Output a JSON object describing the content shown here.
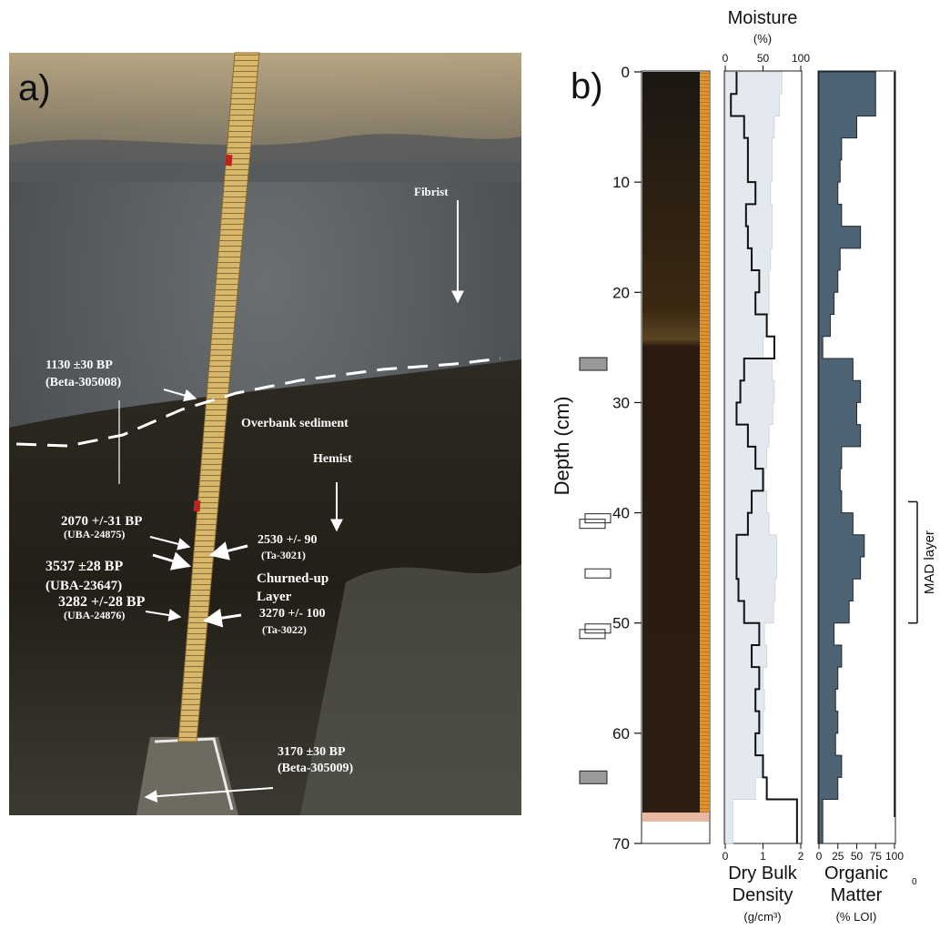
{
  "panel_a": {
    "label": "a)",
    "annotations": [
      {
        "id": "fibrist",
        "text": "Fibrist"
      },
      {
        "id": "d1130",
        "text": "1130 ±30 BP",
        "lab": "(Beta-305008)"
      },
      {
        "id": "overbank",
        "text": "Overbank sediment"
      },
      {
        "id": "hemist",
        "text": "Hemist"
      },
      {
        "id": "d2070",
        "text": "2070 +/-31 BP",
        "lab": "(UBA-24875)"
      },
      {
        "id": "d2530",
        "text": "2530 +/- 90",
        "lab": "(Ta-3021)"
      },
      {
        "id": "churned",
        "text": "Churned-up",
        "lab": "Layer"
      },
      {
        "id": "d3537",
        "text": "3537 ±28 BP",
        "lab": "(UBA-23647)"
      },
      {
        "id": "d3282",
        "text": "3282 +/-28 BP",
        "lab": "(UBA-24876)"
      },
      {
        "id": "d3270",
        "text": "3270 +/- 100",
        "lab": "(Ta-3022)"
      },
      {
        "id": "d3170",
        "text": "3170 ±30 BP",
        "lab": "(Beta-305009)"
      }
    ]
  },
  "panel_b": {
    "label": "b)",
    "depth_axis": {
      "label": "Depth (cm)",
      "ticks": [
        "0",
        "10",
        "20",
        "30",
        "40",
        "50",
        "60",
        "70"
      ]
    },
    "moisture_axis": {
      "title": "Moisture",
      "unit": "(%)",
      "ticks": [
        "0",
        "50",
        "100"
      ]
    },
    "density_axis": {
      "title1": "Dry Bulk",
      "title2": "Density",
      "unit": "(g/cm³)",
      "ticks": [
        "0",
        "1",
        "2"
      ]
    },
    "organic_axis": {
      "title1": "Organic",
      "title2": "Matter",
      "unit": "(% LOI)",
      "ticks": [
        "0",
        "25",
        "50",
        "75",
        "100"
      ]
    },
    "mad_label": "MAD layer",
    "stray_label": "0"
  },
  "chart_data": {
    "type": "step-profile",
    "depth_range": [
      0,
      70
    ],
    "moisture_range": [
      0,
      100
    ],
    "density_range": [
      0,
      2
    ],
    "organic_range": [
      0,
      100
    ],
    "mad_layer": [
      39,
      50
    ],
    "sample_boxes": [
      {
        "depth": 26.5,
        "filled": true
      },
      {
        "depth": 40.5,
        "filled": false
      },
      {
        "depth": 41,
        "filled": false
      },
      {
        "depth": 45.5,
        "filled": false
      },
      {
        "depth": 50.5,
        "filled": false
      },
      {
        "depth": 51,
        "filled": false
      },
      {
        "depth": 64,
        "filled": true
      }
    ],
    "profiles": [
      {
        "top": 0,
        "bottom": 2,
        "density": 0.3,
        "moisture": 75,
        "organic": 75
      },
      {
        "top": 2,
        "bottom": 4,
        "density": 0.15,
        "moisture": 72,
        "organic": 75
      },
      {
        "top": 4,
        "bottom": 6,
        "density": 0.5,
        "moisture": 65,
        "organic": 50
      },
      {
        "top": 6,
        "bottom": 8,
        "density": 0.6,
        "moisture": 62,
        "organic": 30
      },
      {
        "top": 8,
        "bottom": 10,
        "density": 0.6,
        "moisture": 62,
        "organic": 28
      },
      {
        "top": 10,
        "bottom": 12,
        "density": 0.8,
        "moisture": 60,
        "organic": 25
      },
      {
        "top": 12,
        "bottom": 14,
        "density": 0.55,
        "moisture": 62,
        "organic": 30
      },
      {
        "top": 14,
        "bottom": 16,
        "density": 0.6,
        "moisture": 62,
        "organic": 55
      },
      {
        "top": 16,
        "bottom": 18,
        "density": 0.7,
        "moisture": 60,
        "organic": 28
      },
      {
        "top": 18,
        "bottom": 20,
        "density": 0.9,
        "moisture": 58,
        "organic": 25
      },
      {
        "top": 20,
        "bottom": 22,
        "density": 0.8,
        "moisture": 58,
        "organic": 20
      },
      {
        "top": 22,
        "bottom": 24,
        "density": 1.1,
        "moisture": 55,
        "organic": 15
      },
      {
        "top": 24,
        "bottom": 26,
        "density": 1.3,
        "moisture": 50,
        "organic": 5
      },
      {
        "top": 26,
        "bottom": 28,
        "density": 0.5,
        "moisture": 62,
        "organic": 45
      },
      {
        "top": 28,
        "bottom": 30,
        "density": 0.4,
        "moisture": 65,
        "organic": 55
      },
      {
        "top": 30,
        "bottom": 32,
        "density": 0.3,
        "moisture": 63,
        "organic": 50
      },
      {
        "top": 32,
        "bottom": 34,
        "density": 0.6,
        "moisture": 58,
        "organic": 55
      },
      {
        "top": 34,
        "bottom": 36,
        "density": 0.8,
        "moisture": 55,
        "organic": 30
      },
      {
        "top": 36,
        "bottom": 38,
        "density": 1.0,
        "moisture": 52,
        "organic": 28
      },
      {
        "top": 38,
        "bottom": 40,
        "density": 0.7,
        "moisture": 55,
        "organic": 30
      },
      {
        "top": 40,
        "bottom": 42,
        "density": 0.6,
        "moisture": 58,
        "organic": 45
      },
      {
        "top": 42,
        "bottom": 44,
        "density": 0.3,
        "moisture": 68,
        "organic": 60
      },
      {
        "top": 44,
        "bottom": 46,
        "density": 0.3,
        "moisture": 68,
        "organic": 55
      },
      {
        "top": 46,
        "bottom": 48,
        "density": 0.35,
        "moisture": 66,
        "organic": 45
      },
      {
        "top": 48,
        "bottom": 50,
        "density": 0.5,
        "moisture": 64,
        "organic": 40
      },
      {
        "top": 50,
        "bottom": 52,
        "density": 0.9,
        "moisture": 52,
        "organic": 20
      },
      {
        "top": 52,
        "bottom": 54,
        "density": 0.7,
        "moisture": 55,
        "organic": 30
      },
      {
        "top": 54,
        "bottom": 56,
        "density": 0.9,
        "moisture": 50,
        "organic": 25
      },
      {
        "top": 56,
        "bottom": 58,
        "density": 0.8,
        "moisture": 52,
        "organic": 22
      },
      {
        "top": 58,
        "bottom": 60,
        "density": 0.9,
        "moisture": 50,
        "organic": 25
      },
      {
        "top": 60,
        "bottom": 62,
        "density": 0.8,
        "moisture": 50,
        "organic": 22
      },
      {
        "top": 62,
        "bottom": 64,
        "density": 1.0,
        "moisture": 48,
        "organic": 30
      },
      {
        "top": 64,
        "bottom": 66,
        "density": 1.1,
        "moisture": 40,
        "organic": 25
      },
      {
        "top": 66,
        "bottom": 70,
        "density": 1.9,
        "moisture": 10,
        "organic": 5
      }
    ]
  }
}
